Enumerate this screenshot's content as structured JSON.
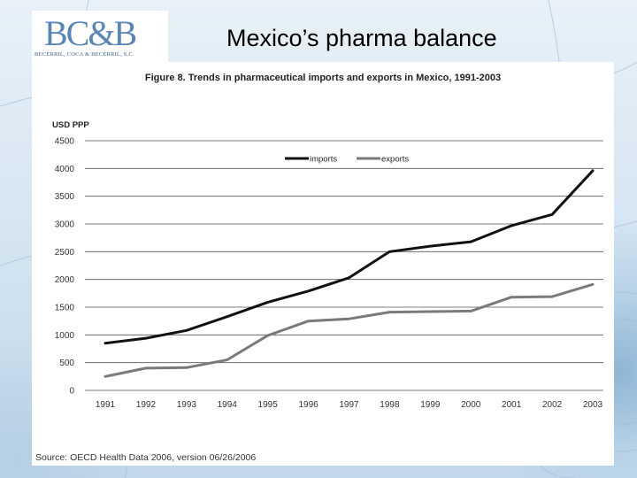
{
  "slide": {
    "title": "Mexico’s pharma balance"
  },
  "logo": {
    "mark": "BC&B",
    "subtitle": "BECERRIL, COCA & BECERRIL, S.C."
  },
  "figure": {
    "title": "Figure 8. Trends in pharmaceutical imports and exports in Mexico, 1991-2003",
    "source": "Source: OECD Health Data 2006, version 06/26/2006"
  },
  "colors": {
    "imports": "#111111",
    "exports": "#7a7a7a",
    "grid": "#555555",
    "background_accent": "#5a86b6"
  },
  "chart_data": {
    "type": "line",
    "title": "Figure 8. Trends in pharmaceutical imports and exports in Mexico, 1991-2003",
    "ylabel": "USD PPP",
    "xlabel": "",
    "x": [
      "1991",
      "1992",
      "1993",
      "1994",
      "1995",
      "1996",
      "1997",
      "1998",
      "1999",
      "2000",
      "2001",
      "2002",
      "2003"
    ],
    "ylim": [
      0,
      4500
    ],
    "yticks": [
      0,
      500,
      1000,
      1500,
      2000,
      2500,
      3000,
      3500,
      4000,
      4500
    ],
    "grid": "horizontal",
    "legend_position": "top-center",
    "series": [
      {
        "name": "imports",
        "values": [
          850,
          940,
          1080,
          1330,
          1590,
          1790,
          2030,
          2500,
          2600,
          2680,
          2970,
          3170,
          3960
        ]
      },
      {
        "name": "exports",
        "values": [
          250,
          400,
          410,
          550,
          990,
          1250,
          1290,
          1410,
          1420,
          1430,
          1680,
          1690,
          1910
        ]
      }
    ]
  }
}
